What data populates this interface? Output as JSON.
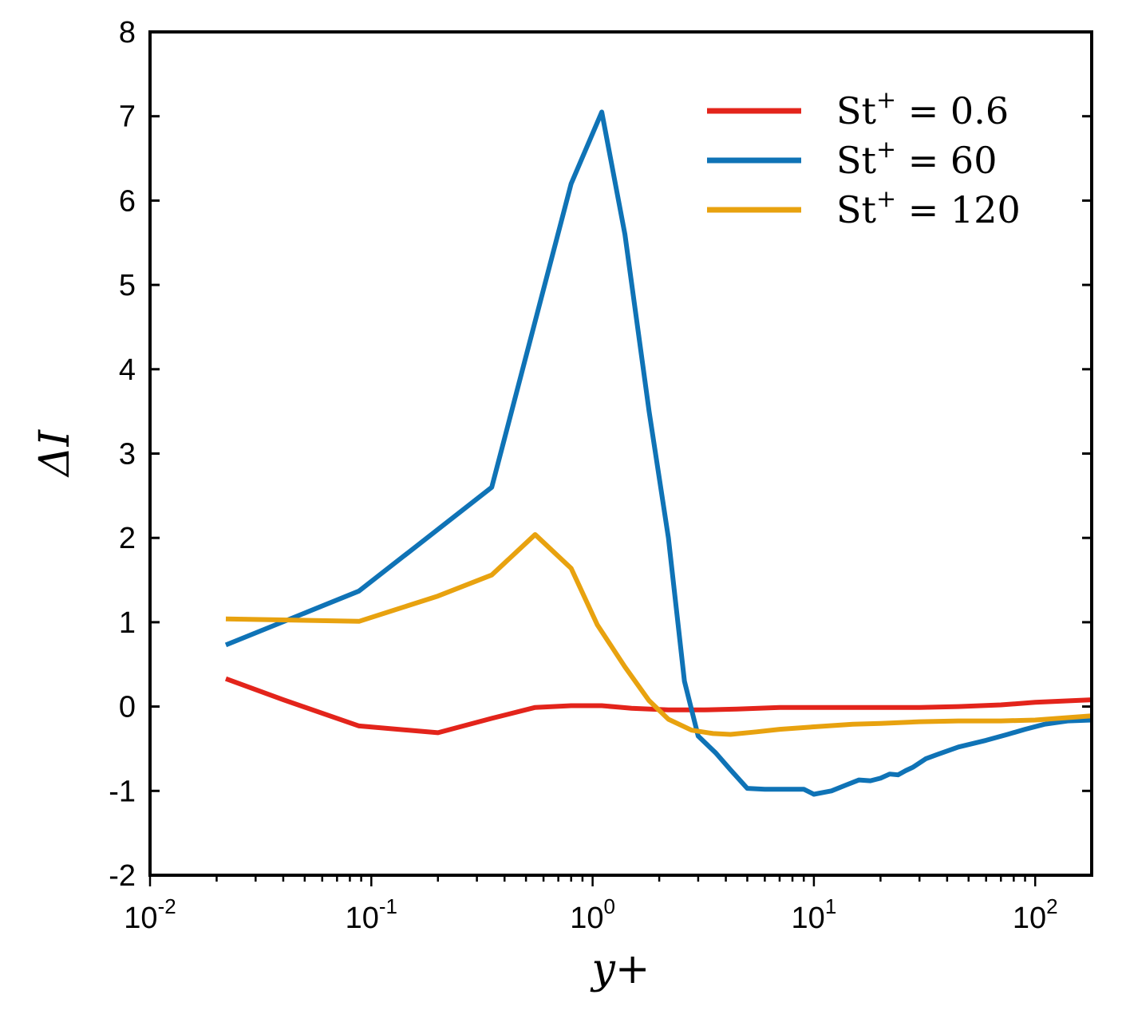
{
  "chart_data": {
    "type": "line",
    "title": "",
    "xlabel": "y+",
    "ylabel": "ΔI",
    "xscale": "log",
    "xlim": [
      0.01,
      180
    ],
    "ylim": [
      -2,
      8
    ],
    "yticks": [
      "-2",
      "-1",
      "0",
      "1",
      "2",
      "3",
      "4",
      "5",
      "6",
      "7",
      "8"
    ],
    "xticks": [
      {
        "base": "10",
        "exp": "-2"
      },
      {
        "base": "10",
        "exp": "-1"
      },
      {
        "base": "10",
        "exp": "0"
      },
      {
        "base": "10",
        "exp": "1"
      },
      {
        "base": "10",
        "exp": "2"
      }
    ],
    "legend_position": "top-right",
    "series": [
      {
        "name": "St+ = 0.6",
        "label_main": "St",
        "label_sup": "+",
        "label_value": " = 0.6",
        "color": "#e3241b",
        "x": [
          0.022,
          0.04,
          0.088,
          0.2,
          0.35,
          0.55,
          0.8,
          1.1,
          1.5,
          2.2,
          3.2,
          4.5,
          7,
          10,
          15,
          20,
          30,
          45,
          70,
          100,
          180
        ],
        "y": [
          0.33,
          0.08,
          -0.23,
          -0.31,
          -0.14,
          -0.01,
          0.01,
          0.01,
          -0.02,
          -0.04,
          -0.04,
          -0.03,
          -0.01,
          -0.01,
          -0.01,
          -0.01,
          -0.01,
          0.0,
          0.02,
          0.05,
          0.08
        ]
      },
      {
        "name": "St+ = 60",
        "label_main": "St",
        "label_sup": "+",
        "label_value": " = 60",
        "color": "#0f73b6",
        "x": [
          0.022,
          0.088,
          0.35,
          0.8,
          1.1,
          1.4,
          1.8,
          2.2,
          2.6,
          3.0,
          3.6,
          4.2,
          5.0,
          6.0,
          7.5,
          9.0,
          10.0,
          12.0,
          14.0,
          16.0,
          18.0,
          20.0,
          22.0,
          24.0,
          26.0,
          28.0,
          32.0,
          36.0,
          45.0,
          60.0,
          75.0,
          90.0,
          110.0,
          140.0,
          180.0
        ],
        "y": [
          0.73,
          1.37,
          2.6,
          6.2,
          7.05,
          5.6,
          3.5,
          2.0,
          0.3,
          -0.35,
          -0.55,
          -0.75,
          -0.97,
          -0.98,
          -0.98,
          -0.98,
          -1.04,
          -1.0,
          -0.93,
          -0.87,
          -0.88,
          -0.85,
          -0.8,
          -0.81,
          -0.76,
          -0.72,
          -0.62,
          -0.57,
          -0.48,
          -0.4,
          -0.33,
          -0.27,
          -0.21,
          -0.17,
          -0.16
        ]
      },
      {
        "name": "St+ = 120",
        "label_main": "St",
        "label_sup": "+",
        "label_value": " = 120",
        "color": "#e8a20f",
        "x": [
          0.022,
          0.088,
          0.2,
          0.35,
          0.55,
          0.8,
          1.05,
          1.4,
          1.8,
          2.2,
          2.8,
          3.5,
          4.2,
          5.5,
          7,
          10,
          15,
          20,
          30,
          45,
          70,
          100,
          180
        ],
        "y": [
          1.04,
          1.01,
          1.31,
          1.56,
          2.04,
          1.64,
          0.97,
          0.47,
          0.07,
          -0.15,
          -0.28,
          -0.32,
          -0.33,
          -0.3,
          -0.27,
          -0.24,
          -0.21,
          -0.2,
          -0.18,
          -0.17,
          -0.17,
          -0.16,
          -0.11
        ]
      }
    ]
  }
}
